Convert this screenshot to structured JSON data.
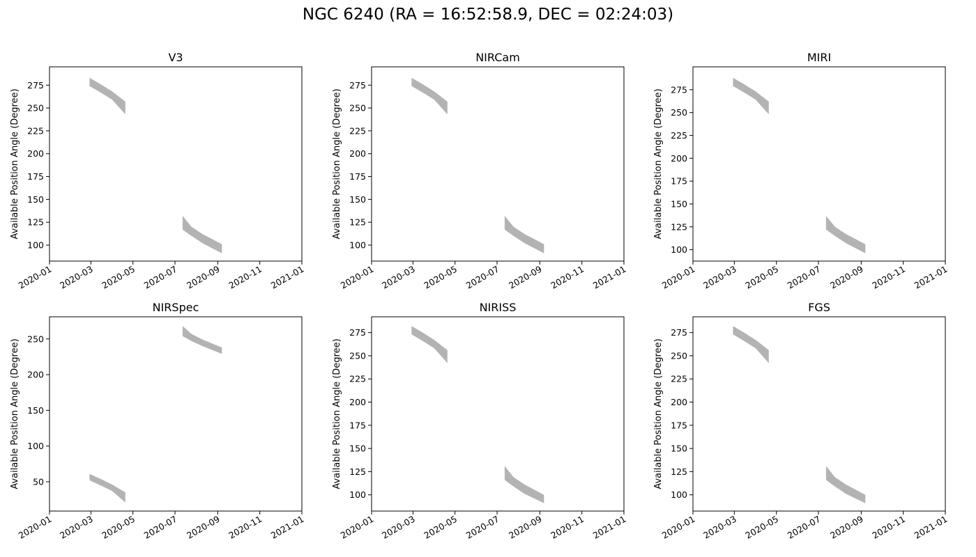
{
  "figure": {
    "title": "NGC 6240 (RA = 16:52:58.9, DEC = 02:24:03)"
  },
  "chart_data": [
    {
      "type": "area",
      "title": "V3",
      "ylabel": "Available Position Angle (Degree)",
      "xlabel": "",
      "x_ticks": [
        "2020-01",
        "2020-03",
        "2020-05",
        "2020-07",
        "2020-09",
        "2020-11",
        "2021-01"
      ],
      "y_ticks": [
        100,
        125,
        150,
        175,
        200,
        225,
        250,
        275
      ],
      "xlim": [
        "2020-01-01",
        "2021-01-01"
      ],
      "ylim": [
        82.5,
        295
      ],
      "fill_color": "#b3b3b3",
      "grid": false,
      "bands": [
        {
          "x": [
            "2020-02-28",
            "2020-03-15",
            "2020-04-01",
            "2020-04-20"
          ],
          "low": [
            274,
            267,
            259,
            243
          ],
          "high": [
            283,
            276,
            268,
            257
          ]
        },
        {
          "x": [
            "2020-07-12",
            "2020-07-25",
            "2020-08-10",
            "2020-09-07"
          ],
          "low": [
            117,
            110,
            102,
            91
          ],
          "high": [
            132,
            120,
            112,
            101
          ]
        }
      ]
    },
    {
      "type": "area",
      "title": "NIRCam",
      "ylabel": "Available Position Angle (Degree)",
      "xlabel": "",
      "x_ticks": [
        "2020-01",
        "2020-03",
        "2020-05",
        "2020-07",
        "2020-09",
        "2020-11",
        "2021-01"
      ],
      "y_ticks": [
        100,
        125,
        150,
        175,
        200,
        225,
        250,
        275
      ],
      "xlim": [
        "2020-01-01",
        "2021-01-01"
      ],
      "ylim": [
        82.5,
        295
      ],
      "fill_color": "#b3b3b3",
      "grid": false,
      "bands": [
        {
          "x": [
            "2020-02-28",
            "2020-03-15",
            "2020-04-01",
            "2020-04-20"
          ],
          "low": [
            274,
            267,
            259,
            243
          ],
          "high": [
            283,
            276,
            268,
            257
          ]
        },
        {
          "x": [
            "2020-07-12",
            "2020-07-25",
            "2020-08-10",
            "2020-09-07"
          ],
          "low": [
            117,
            110,
            102,
            91
          ],
          "high": [
            132,
            120,
            112,
            101
          ]
        }
      ]
    },
    {
      "type": "area",
      "title": "MIRI",
      "ylabel": "Available Position Angle (Degree)",
      "xlabel": "",
      "x_ticks": [
        "2020-01",
        "2020-03",
        "2020-05",
        "2020-07",
        "2020-09",
        "2020-11",
        "2021-01"
      ],
      "y_ticks": [
        100,
        125,
        150,
        175,
        200,
        225,
        250,
        275
      ],
      "xlim": [
        "2020-01-01",
        "2021-01-01"
      ],
      "ylim": [
        87.5,
        300
      ],
      "fill_color": "#b3b3b3",
      "grid": false,
      "bands": [
        {
          "x": [
            "2020-02-28",
            "2020-03-15",
            "2020-04-01",
            "2020-04-20"
          ],
          "low": [
            279,
            272,
            264,
            248
          ],
          "high": [
            288,
            281,
            273,
            262
          ]
        },
        {
          "x": [
            "2020-07-12",
            "2020-07-25",
            "2020-08-10",
            "2020-09-07"
          ],
          "low": [
            122,
            115,
            107,
            96
          ],
          "high": [
            137,
            125,
            117,
            106
          ]
        }
      ]
    },
    {
      "type": "area",
      "title": "NIRSpec",
      "ylabel": "Available Position Angle (Degree)",
      "xlabel": "",
      "x_ticks": [
        "2020-01",
        "2020-03",
        "2020-05",
        "2020-07",
        "2020-09",
        "2020-11",
        "2021-01"
      ],
      "y_ticks": [
        50,
        100,
        150,
        200,
        250
      ],
      "xlim": [
        "2020-01-01",
        "2021-01-01"
      ],
      "ylim": [
        9,
        281
      ],
      "fill_color": "#b3b3b3",
      "grid": false,
      "bands": [
        {
          "x": [
            "2020-02-28",
            "2020-03-15",
            "2020-04-01",
            "2020-04-20"
          ],
          "low": [
            52,
            45,
            37,
            21
          ],
          "high": [
            61,
            54,
            46,
            35
          ]
        },
        {
          "x": [
            "2020-07-12",
            "2020-07-25",
            "2020-08-10",
            "2020-09-07"
          ],
          "low": [
            254,
            247,
            240,
            229
          ],
          "high": [
            268,
            257,
            249,
            238
          ]
        }
      ]
    },
    {
      "type": "area",
      "title": "NIRISS",
      "ylabel": "Available Position Angle (Degree)",
      "xlabel": "",
      "x_ticks": [
        "2020-01",
        "2020-03",
        "2020-05",
        "2020-07",
        "2020-09",
        "2020-11",
        "2021-01"
      ],
      "y_ticks": [
        100,
        125,
        150,
        175,
        200,
        225,
        250,
        275
      ],
      "xlim": [
        "2020-01-01",
        "2021-01-01"
      ],
      "ylim": [
        82.5,
        292
      ],
      "fill_color": "#b3b3b3",
      "grid": false,
      "bands": [
        {
          "x": [
            "2020-02-28",
            "2020-03-15",
            "2020-04-01",
            "2020-04-20"
          ],
          "low": [
            273,
            266,
            258,
            242
          ],
          "high": [
            282,
            275,
            267,
            256
          ]
        },
        {
          "x": [
            "2020-07-12",
            "2020-07-25",
            "2020-08-10",
            "2020-09-07"
          ],
          "low": [
            116,
            109,
            101,
            91
          ],
          "high": [
            131,
            119,
            111,
            100
          ]
        }
      ]
    },
    {
      "type": "area",
      "title": "FGS",
      "ylabel": "Available Position Angle (Degree)",
      "xlabel": "",
      "x_ticks": [
        "2020-01",
        "2020-03",
        "2020-05",
        "2020-07",
        "2020-09",
        "2020-11",
        "2021-01"
      ],
      "y_ticks": [
        100,
        125,
        150,
        175,
        200,
        225,
        250,
        275
      ],
      "xlim": [
        "2020-01-01",
        "2021-01-01"
      ],
      "ylim": [
        82.5,
        292
      ],
      "fill_color": "#b3b3b3",
      "grid": false,
      "bands": [
        {
          "x": [
            "2020-02-28",
            "2020-03-15",
            "2020-04-01",
            "2020-04-20"
          ],
          "low": [
            273,
            266,
            258,
            242
          ],
          "high": [
            282,
            275,
            267,
            256
          ]
        },
        {
          "x": [
            "2020-07-12",
            "2020-07-25",
            "2020-08-10",
            "2020-09-07"
          ],
          "low": [
            116,
            109,
            101,
            91
          ],
          "high": [
            131,
            119,
            111,
            100
          ]
        }
      ]
    }
  ]
}
